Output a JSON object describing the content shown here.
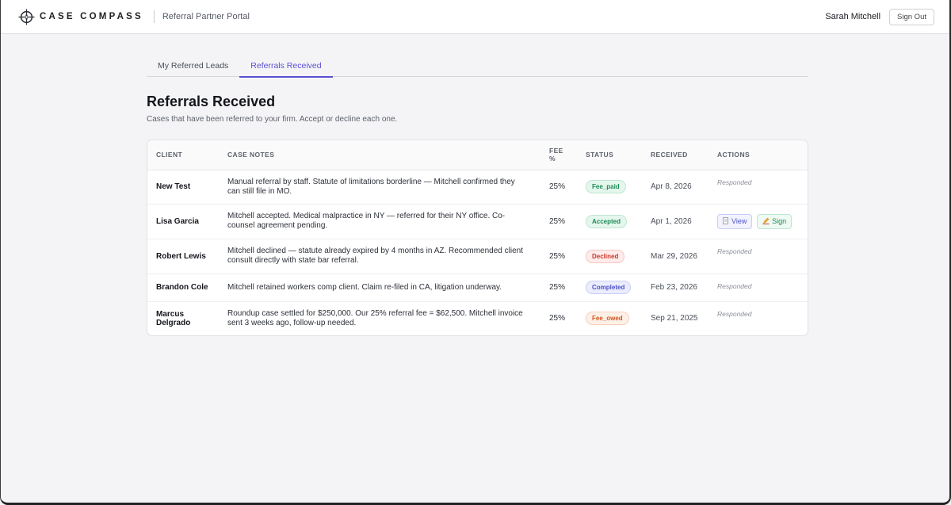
{
  "header": {
    "brand": "CASE COMPASS",
    "portal_label": "Referral Partner Portal",
    "user_name": "Sarah Mitchell",
    "signout_label": "Sign Out",
    "logo_icon": "compass-logo-icon"
  },
  "tabs": [
    {
      "label": "My Referred Leads",
      "active": false
    },
    {
      "label": "Referrals Received",
      "active": true
    }
  ],
  "page": {
    "title": "Referrals Received",
    "subtitle": "Cases that have been referred to your firm. Accept or decline each one."
  },
  "table": {
    "columns": [
      "CLIENT",
      "CASE NOTES",
      "FEE %",
      "STATUS",
      "RECEIVED",
      "ACTIONS"
    ],
    "rows": [
      {
        "client": "New Test",
        "notes": "Manual referral by staff. Statute of limitations borderline — Mitchell confirmed they can still file in MO.",
        "fee": "25%",
        "status": "Fee_paid",
        "received": "Apr 8, 2026",
        "action": "Responded"
      },
      {
        "client": "Lisa Garcia",
        "notes": "Mitchell accepted. Medical malpractice in NY — referred for their NY office. Co-counsel agreement pending.",
        "fee": "25%",
        "status": "Accepted",
        "received": "Apr 1, 2026",
        "view_label": "View",
        "sign_label": "Sign"
      },
      {
        "client": "Robert Lewis",
        "notes": "Mitchell declined — statute already expired by 4 months in AZ. Recommended client consult directly with state bar referral.",
        "fee": "25%",
        "status": "Declined",
        "received": "Mar 29, 2026",
        "action": "Responded"
      },
      {
        "client": "Brandon Cole",
        "notes": "Mitchell retained workers comp client. Claim re-filed in CA, litigation underway.",
        "fee": "25%",
        "status": "Completed",
        "received": "Feb 23, 2026",
        "action": "Responded"
      },
      {
        "client": "Marcus Delgrado",
        "notes": "Roundup case settled for $250,000. Our 25% referral fee = $62,500. Mitchell invoice sent 3 weeks ago, follow-up needed.",
        "fee": "25%",
        "status": "Fee_owed",
        "received": "Sep 21, 2025",
        "action": "Responded"
      }
    ]
  },
  "colors": {
    "accent": "#5a4fd6",
    "status_green": "#1c8a55",
    "status_red": "#c9372c",
    "status_blue": "#4a52c9",
    "status_orange": "#d0561d"
  }
}
